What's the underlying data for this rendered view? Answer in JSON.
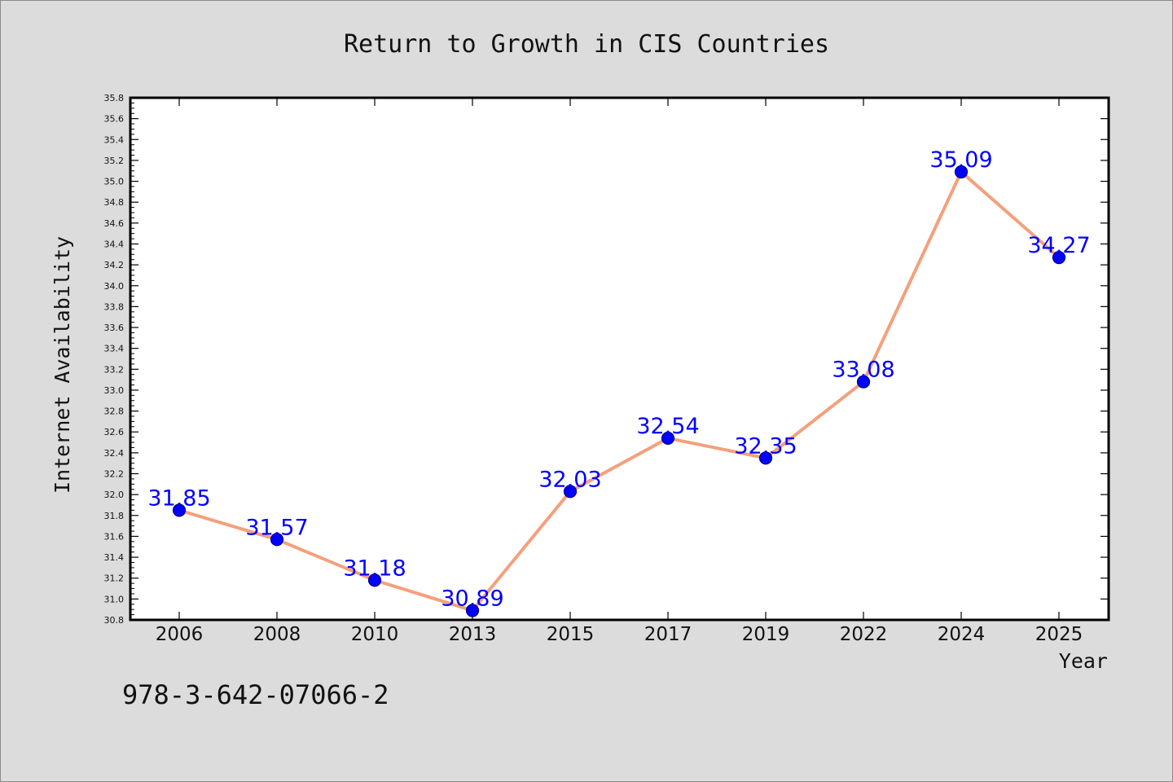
{
  "chart_data": {
    "type": "line",
    "title": "Return to Growth in CIS Countries",
    "xlabel": "Year",
    "ylabel": "Internet Availability",
    "categories": [
      "2006",
      "2008",
      "2010",
      "2013",
      "2015",
      "2017",
      "2019",
      "2022",
      "2024",
      "2025"
    ],
    "series": [
      {
        "values": [
          31.85,
          31.57,
          31.18,
          30.89,
          32.03,
          32.54,
          32.35,
          33.08,
          35.09,
          34.27
        ],
        "labels": [
          "31.85",
          "31.57",
          "31.18",
          "30.89",
          "32.03",
          "32.54",
          "32.35",
          "33.08",
          "35.09",
          "34.27"
        ]
      }
    ],
    "ylim": [
      30.8,
      35.8
    ],
    "yticks": [
      "30.8",
      "31.0",
      "31.2",
      "31.4",
      "31.6",
      "31.8",
      "32.0",
      "32.2",
      "32.4",
      "32.6",
      "32.8",
      "33.0",
      "33.2",
      "33.4",
      "33.6",
      "33.8",
      "34.0",
      "34.2",
      "34.4",
      "34.6",
      "34.8",
      "35.0",
      "35.2",
      "35.4",
      "35.6",
      "35.8"
    ],
    "grid": false,
    "legend": "none",
    "colors": {
      "line": "#f4a07c",
      "marker": "#0000ff",
      "marker_edge": "#000080",
      "data_label": "#0000ff",
      "background": "#dcdcdc",
      "plot_background": "#ffffff"
    }
  },
  "annotations": {
    "isbn": "978-3-642-07066-2"
  }
}
